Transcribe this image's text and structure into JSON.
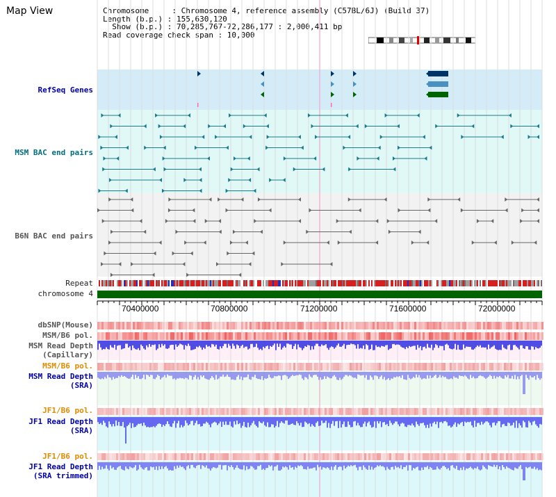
{
  "title": "Map View",
  "info": {
    "chromosome": "Chromosome     : Chromosome 4, reference assembly (C57BL/6J) (Build 37)",
    "length": "Length (b.p.) : 155,630,120",
    "show": "  Show (b.p.) : 70,285,767-72,286,177 : 2,000,411 bp",
    "coverage": "Read coverage check span : 10,000"
  },
  "tracks": {
    "refseq": "RefSeq Genes",
    "msm_bac": "MSM BAC end pairs",
    "b6n_bac": "B6N BAC end pairs",
    "repeat": "Repeat",
    "chromosome": "chromosome 4",
    "dbsnp": "dbSNP(Mouse)",
    "msm_b6_pol_1": "MSM/B6 pol.",
    "msm_depth_cap_1": "MSM Read Depth",
    "msm_depth_cap_2": "(Capillary)",
    "msm_b6_pol_2": "MSM/B6 pol.",
    "msm_depth_sra_1": "MSM Read Depth",
    "msm_depth_sra_2": "(SRA)",
    "jf1_b6_pol_1": "JF1/B6 pol.",
    "jf1_depth_sra_1": "JF1 Read Depth",
    "jf1_depth_sra_2": "(SRA)",
    "jf1_b6_pol_2": "JF1/B6 pol.",
    "jf1_depth_trim_1": "JF1 Read Depth",
    "jf1_depth_trim_2": "(SRA trimmed)"
  },
  "axis": {
    "ticks": [
      "70400000",
      "70800000",
      "71200000",
      "71600000",
      "72000000"
    ]
  },
  "colors": {
    "refseq_bg": "#d4ecf7",
    "msm_bg": "#e0f8f6",
    "b6n_bg": "#f2f2f2",
    "chromosome": "#006400",
    "teal": "#1a7a8c",
    "snp": "#f08080",
    "depth": "#4040ff",
    "pol": "#f09090",
    "cursor": "#ff80c0"
  },
  "icons": {
    "gene_arrow": "triangle-arrow-icon",
    "bac_pair": "linked-pair-icon"
  }
}
